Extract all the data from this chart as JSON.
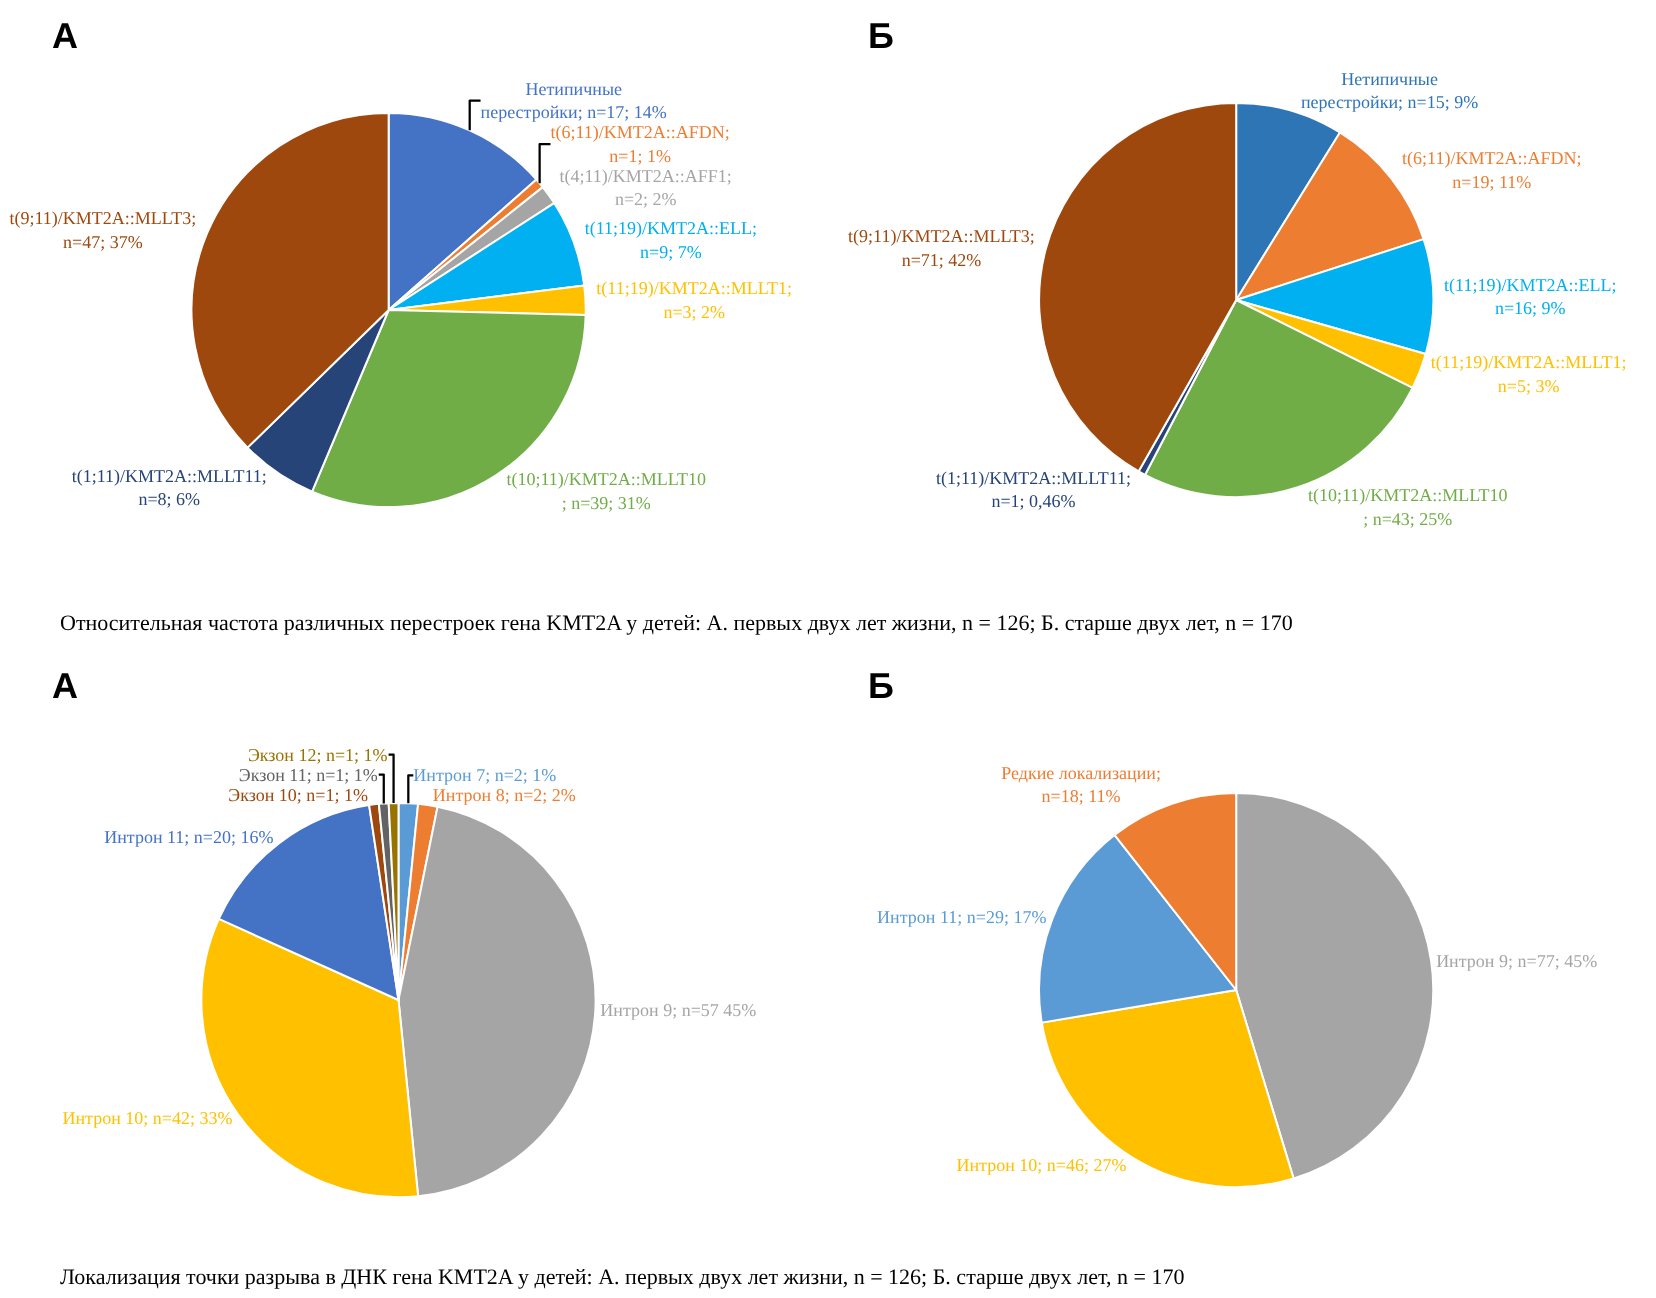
{
  "chart_data": [
    {
      "type": "pie",
      "title": "А",
      "categories": [
        "Нетипичные перестройки; n=17; 14%",
        "t(6;11)/KMT2A::AFDN; n=1; 1%",
        "t(4;11)/KMT2A::AFF1; n=2; 2%",
        "t(11;19)/KMT2A::ELL; n=9; 7%",
        "t(11;19)/KMT2A::MLLT1; n=3; 2%",
        "t(10;11)/KMT2A::MLLT10; n=39; 31%",
        "t(1;11)/KMT2A::MLLT11; n=8; 6%",
        "t(9;11)/KMT2A::MLLT3; n=47; 37%"
      ],
      "values": [
        17,
        1,
        2,
        9,
        3,
        39,
        8,
        47
      ],
      "colors": [
        "#4472c4",
        "#ed7d31",
        "#a5a5a5",
        "#00b0f0",
        "#ffc000",
        "#70ad47",
        "#264478",
        "#9e480e"
      ],
      "annotations": [
        "Относительная частота различных перестроек гена KMT2A у детей: А. первых двух лет жизни, n = 126; Б. старше двух лет, n = 170"
      ]
    },
    {
      "type": "pie",
      "title": "Б",
      "categories": [
        "Нетипичные перестройки; n=15; 9%",
        "t(6;11)/KMT2A::AFDN; n=19; 11%",
        "t(11;19)/KMT2A::ELL; n=16; 9%",
        "t(11;19)/KMT2A::MLLT1; n=5; 3%",
        "t(10;11)/KMT2A::MLLT10; n=43; 25%",
        "t(1;11)/KMT2A::MLLT11; n=1; 0,46%",
        "t(9;11)/KMT2A::MLLT3; n=71; 42%"
      ],
      "values": [
        15,
        19,
        16,
        5,
        43,
        1,
        71
      ],
      "colors": [
        "#2e75b6",
        "#ed7d31",
        "#00b0f0",
        "#ffc000",
        "#70ad47",
        "#264478",
        "#9e480e"
      ]
    },
    {
      "type": "pie",
      "title": "А",
      "categories": [
        "Интрон 7; n=2; 1%",
        "Интрон 8; n=2; 2%",
        "Интрон 9; n=57 45%",
        "Интрон 10; n=42; 33%",
        "Интрон 11; n=20; 16%",
        "Экзон 10; n=1; 1%",
        "Экзон 11; n=1; 1%",
        "Экзон 12; n=1; 1%"
      ],
      "values": [
        2,
        2,
        57,
        42,
        20,
        1,
        1,
        1
      ],
      "colors": [
        "#5b9bd5",
        "#ed7d31",
        "#a5a5a5",
        "#ffc000",
        "#4472c4",
        "#9e480e",
        "#636363",
        "#997300"
      ],
      "annotations": [
        "Локализация точки разрыва в ДНК гена KMT2A у детей: А. первых двух лет жизни, n = 126; Б. старше двух лет, n = 170"
      ]
    },
    {
      "type": "pie",
      "title": "Б",
      "categories": [
        "Интрон 9; n=77; 45%",
        "Интрон 10; n=46; 27%",
        "Интрон 11; n=29; 17%",
        "Редкие локализации; n=18; 11%"
      ],
      "values": [
        77,
        46,
        29,
        18
      ],
      "colors": [
        "#a5a5a5",
        "#ffc000",
        "#5b9bd5",
        "#ed7d31"
      ]
    }
  ]
}
